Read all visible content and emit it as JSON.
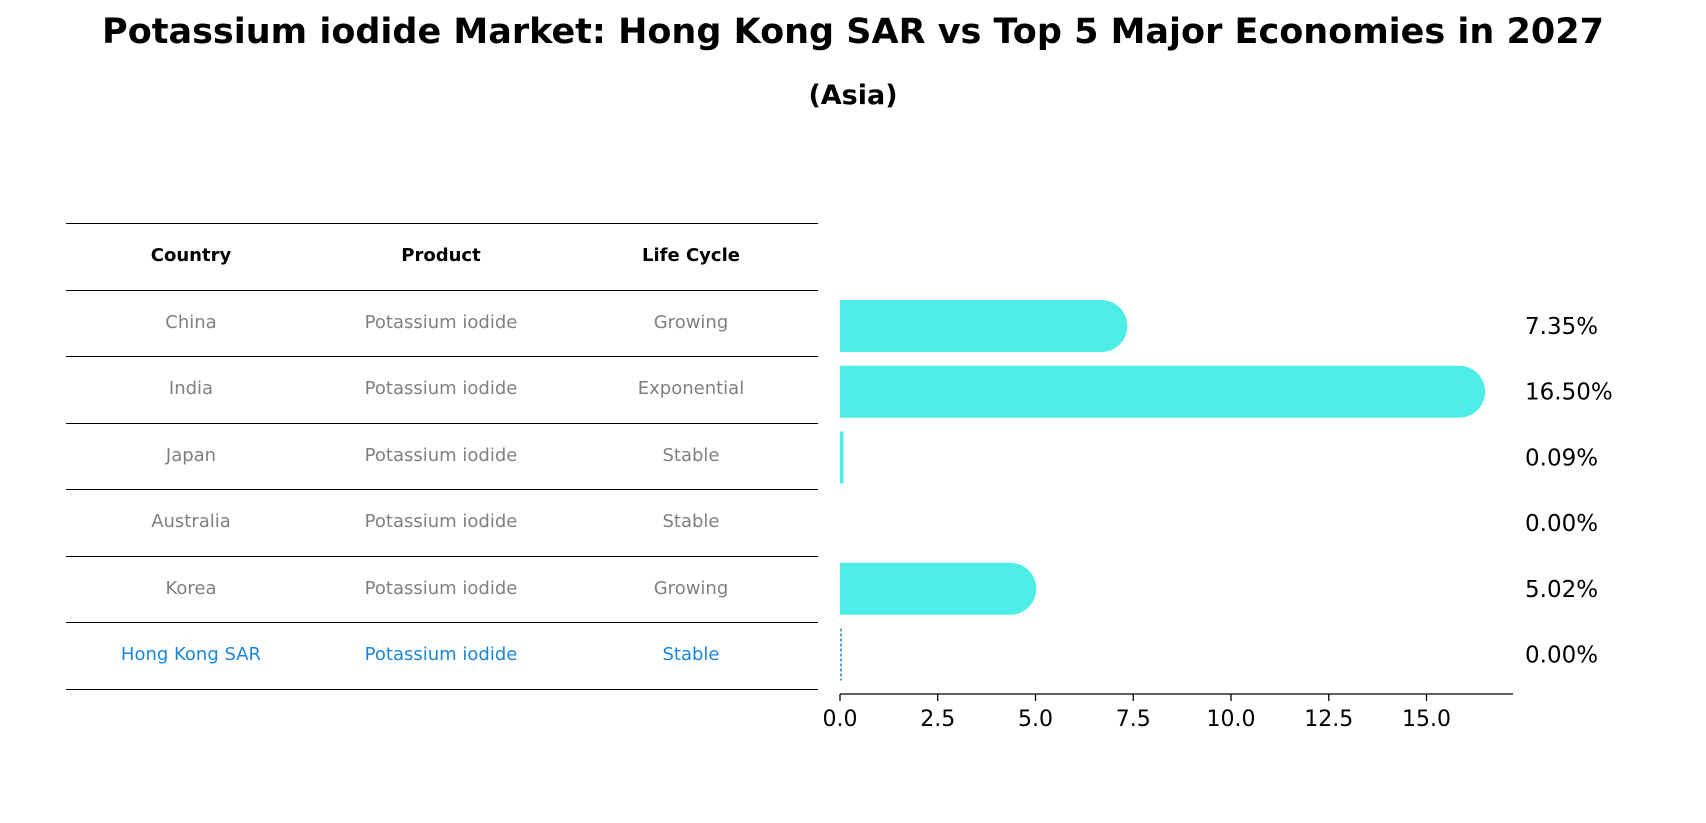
{
  "title": "Potassium iodide Market: Hong Kong SAR vs Top 5 Major Economies in 2027",
  "subtitle": "(Asia)",
  "table": {
    "headers": [
      "Country",
      "Product",
      "Life Cycle"
    ],
    "rows": [
      {
        "country": "China",
        "product": "Potassium iodide",
        "life_cycle": "Growing"
      },
      {
        "country": "India",
        "product": "Potassium iodide",
        "life_cycle": "Exponential"
      },
      {
        "country": "Japan",
        "product": "Potassium iodide",
        "life_cycle": "Stable"
      },
      {
        "country": "Australia",
        "product": "Potassium iodide",
        "life_cycle": "Stable"
      },
      {
        "country": "Korea",
        "product": "Potassium iodide",
        "life_cycle": "Growing"
      },
      {
        "country": "Hong Kong SAR",
        "product": "Potassium iodide",
        "life_cycle": "Stable"
      }
    ],
    "highlight_row_color": "#1a86d8"
  },
  "chart_data": {
    "type": "bar",
    "orientation": "horizontal",
    "categories": [
      "China",
      "India",
      "Japan",
      "Australia",
      "Korea",
      "Hong Kong SAR"
    ],
    "values": [
      7.35,
      16.5,
      0.09,
      0.0,
      5.02,
      0.0
    ],
    "value_labels": [
      "7.35%",
      "16.50%",
      "0.09%",
      "0.00%",
      "5.02%",
      "0.00%"
    ],
    "xticks": [
      0.0,
      2.5,
      5.0,
      7.5,
      10.0,
      12.5,
      15.0
    ],
    "xtick_labels": [
      "0.0",
      "2.5",
      "5.0",
      "7.5",
      "10.0",
      "12.5",
      "15.0"
    ],
    "xlim": [
      0,
      17.25
    ],
    "bar_color": "#4deee8",
    "highlight_color": "#1a86d8",
    "highlight_category": "Hong Kong SAR"
  }
}
